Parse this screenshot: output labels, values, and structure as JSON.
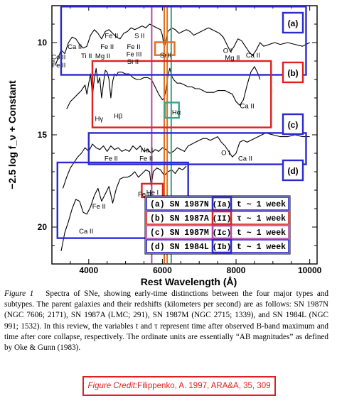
{
  "chart_data": {
    "type": "line",
    "xlabel": "Rest Wavelength (Å)",
    "ylabel": "−2.5 log f_ν + Constant",
    "xlim": [
      3000,
      10200
    ],
    "ylim": [
      22,
      8
    ],
    "x_ticks": [
      4000,
      6000,
      8000,
      10000
    ],
    "y_ticks": [
      10,
      15,
      20
    ],
    "series": [
      {
        "id": "a",
        "x": [
          3100,
          3250,
          3350,
          3450,
          3550,
          3650,
          3750,
          3850,
          3950,
          4050,
          4150,
          4250,
          4350,
          4450,
          4550,
          4650,
          4750,
          4850,
          4950,
          5050,
          5150,
          5250,
          5350,
          5450,
          5550,
          5650,
          5750,
          5850,
          5950,
          6000,
          6050,
          6100,
          6150,
          6250,
          6350,
          6450,
          6550,
          6650,
          6750,
          6850,
          6950,
          7050,
          7150,
          7250,
          7350,
          7450,
          7550,
          7650,
          7750,
          7850,
          7950,
          8050,
          8150,
          8250,
          8350,
          8450,
          8550,
          8650,
          8750,
          8900,
          9050,
          9200,
          9400,
          9600,
          9800,
          10000
        ],
        "y": [
          11.2,
          10.4,
          10.6,
          10.0,
          9.7,
          9.8,
          10.1,
          10.3,
          10.2,
          9.6,
          9.3,
          9.5,
          9.8,
          9.4,
          9.3,
          9.5,
          9.7,
          9.8,
          9.5,
          9.4,
          9.2,
          9.3,
          9.2,
          9.1,
          9.2,
          9.0,
          9.1,
          9.2,
          9.3,
          9.6,
          10.3,
          9.8,
          9.4,
          9.2,
          9.3,
          9.5,
          9.4,
          9.3,
          9.4,
          9.6,
          9.5,
          9.4,
          9.3,
          9.2,
          9.3,
          9.4,
          9.5,
          9.7,
          10.1,
          10.5,
          10.2,
          9.8,
          9.9,
          10.2,
          10.5,
          10.7,
          10.4,
          10.0,
          10.2,
          10.1,
          10.0,
          10.1,
          10.0,
          10.1,
          10.2,
          10.0
        ]
      },
      {
        "id": "b",
        "x": [
          3400,
          3500,
          3600,
          3700,
          3800,
          3900,
          3950,
          4000,
          4050,
          4100,
          4150,
          4200,
          4250,
          4300,
          4350,
          4400,
          4450,
          4500,
          4550,
          4600,
          4650,
          4700,
          4750,
          4800,
          4900,
          5000,
          5100,
          5200,
          5300,
          5400,
          5500,
          5600,
          5700,
          5800,
          5900,
          6000,
          6050,
          6100,
          6150,
          6200,
          6250,
          6300,
          6400,
          6500,
          6600,
          6700,
          6800,
          6900,
          7000,
          7100,
          7200,
          7300,
          7400,
          7500,
          7600,
          7700,
          7800,
          7900,
          8000,
          8100,
          8200,
          8300,
          8400,
          8500,
          8600,
          8650
        ],
        "y": [
          13.6,
          13.2,
          13.0,
          12.8,
          12.6,
          12.3,
          12.8,
          12.2,
          11.7,
          12.9,
          12.0,
          11.4,
          12.2,
          11.9,
          13.0,
          12.2,
          11.5,
          11.6,
          12.0,
          13.0,
          12.1,
          11.7,
          11.8,
          11.6,
          11.6,
          11.7,
          11.7,
          11.9,
          12.0,
          12.0,
          11.9,
          11.9,
          12.0,
          12.4,
          12.8,
          13.1,
          13.0,
          12.5,
          11.8,
          11.4,
          11.8,
          12.0,
          12.2,
          12.2,
          12.3,
          12.4,
          12.4,
          12.5,
          12.5,
          12.6,
          12.7,
          12.7,
          12.7,
          12.6,
          12.6,
          12.6,
          12.7,
          12.8,
          13.2,
          13.4,
          13.1,
          12.3,
          11.6,
          11.3,
          11.7,
          12.0
        ]
      },
      {
        "id": "c",
        "x": [
          3300,
          3400,
          3500,
          3600,
          3700,
          3800,
          3900,
          4000,
          4100,
          4200,
          4300,
          4400,
          4500,
          4600,
          4700,
          4800,
          4900,
          5000,
          5100,
          5200,
          5300,
          5400,
          5500,
          5600,
          5700,
          5800,
          5900,
          6000,
          6100,
          6200,
          6300,
          6400,
          6500,
          6600,
          6700,
          6800,
          6900,
          7000,
          7100,
          7200,
          7300,
          7400,
          7500,
          7600,
          7700,
          7800,
          7900,
          8000,
          8100,
          8200,
          8300,
          8400,
          8600,
          8800,
          9000,
          9200,
          9400,
          9600,
          9800,
          10000
        ],
        "y": [
          17.9,
          17.3,
          16.8,
          16.5,
          16.2,
          16.0,
          15.7,
          15.9,
          15.5,
          15.7,
          15.8,
          15.6,
          15.9,
          15.6,
          15.8,
          15.7,
          15.9,
          15.8,
          15.9,
          15.6,
          15.8,
          15.6,
          15.9,
          15.8,
          16.0,
          15.8,
          15.9,
          15.7,
          15.8,
          16.0,
          15.9,
          15.7,
          15.8,
          15.9,
          15.6,
          15.5,
          15.4,
          15.3,
          15.2,
          15.2,
          15.3,
          15.2,
          15.1,
          15.4,
          15.6,
          15.9,
          16.2,
          16.0,
          15.4,
          15.3,
          15.4,
          15.3,
          15.1,
          14.9,
          15.0,
          15.1,
          15.1,
          15.0,
          15.1,
          15.1
        ]
      },
      {
        "id": "d",
        "x": [
          3250,
          3350,
          3450,
          3550,
          3650,
          3750,
          3850,
          3950,
          4050,
          4150,
          4250,
          4350,
          4450,
          4550,
          4650,
          4750,
          4850,
          4950,
          5050,
          5150,
          5250,
          5350,
          5450,
          5550,
          5650,
          5700,
          5750,
          5850,
          5950,
          6050,
          6150,
          6250,
          6350,
          6450,
          6550,
          6650
        ],
        "y": [
          21.3,
          20.3,
          19.7,
          19.0,
          18.5,
          18.6,
          19.2,
          19.3,
          18.9,
          18.3,
          17.9,
          18.6,
          18.2,
          17.8,
          18.7,
          17.9,
          17.4,
          17.3,
          17.3,
          17.2,
          17.0,
          17.3,
          17.1,
          16.9,
          17.0,
          17.8,
          17.0,
          16.8,
          16.9,
          17.2,
          17.0,
          16.9,
          17.1,
          16.8,
          16.9,
          16.7
        ]
      }
    ],
    "line_labels": [
      {
        "text": "Co II",
        "x": 3180,
        "y": 10.9
      },
      {
        "text": "Fe II",
        "x": 3190,
        "y": 11.35
      },
      {
        "text": "Ca II",
        "x": 3620,
        "y": 10.35
      },
      {
        "text": "Ti II",
        "x": 3940,
        "y": 10.85
      },
      {
        "text": "Fe II",
        "x": 4620,
        "y": 9.75
      },
      {
        "text": "S II",
        "x": 5380,
        "y": 9.75
      },
      {
        "text": "Fe II",
        "x": 4500,
        "y": 10.35
      },
      {
        "text": "Fe II",
        "x": 5220,
        "y": 10.35
      },
      {
        "text": "Fe III",
        "x": 5230,
        "y": 10.75
      },
      {
        "text": "Mg II",
        "x": 4380,
        "y": 10.85
      },
      {
        "text": "Si II",
        "x": 5200,
        "y": 11.15
      },
      {
        "text": "Si II",
        "x": 6090,
        "y": 10.8
      },
      {
        "text": "O I",
        "x": 7770,
        "y": 10.55
      },
      {
        "text": "Mg II",
        "x": 7900,
        "y": 10.95
      },
      {
        "text": "Ca II",
        "x": 8460,
        "y": 10.8
      },
      {
        "text": "Hγ",
        "x": 4280,
        "y": 14.25
      },
      {
        "text": "Hβ",
        "x": 4800,
        "y": 14.1
      },
      {
        "text": "Hα",
        "x": 6380,
        "y": 13.9
      },
      {
        "text": "Ca II",
        "x": 8300,
        "y": 13.55
      },
      {
        "text": "Na I",
        "x": 5580,
        "y": 15.95
      },
      {
        "text": "Fe II",
        "x": 4610,
        "y": 16.4
      },
      {
        "text": "Fe II",
        "x": 5560,
        "y": 16.4
      },
      {
        "text": "O I",
        "x": 7720,
        "y": 16.1
      },
      {
        "text": "Ca II",
        "x": 8250,
        "y": 16.4
      },
      {
        "text": "Fe II",
        "x": 5520,
        "y": 18.35
      },
      {
        "text": "Fe II",
        "x": 4280,
        "y": 19.0
      },
      {
        "text": "Ca II",
        "x": 3930,
        "y": 20.35
      },
      {
        "text": "He I",
        "x": 5730,
        "y": 18.25
      }
    ],
    "reference_lines": [
      {
        "x": 5710,
        "color": "#b04aa0"
      },
      {
        "x": 6050,
        "color": "#e07020"
      },
      {
        "x": 6130,
        "color": "#e07020"
      },
      {
        "x": 6240,
        "color": "#30a890"
      }
    ],
    "legend": {
      "rows": [
        {
          "label": "(a)  SN 1987N",
          "type": "(Ia)",
          "time": "t ∼ 1 week",
          "color": "#2a2ad0"
        },
        {
          "label": "(b)  SN 1987A",
          "type": "(II)",
          "time": "τ ∼ 1 week",
          "color": "#e02020"
        },
        {
          "label": "(c)  SN 1987M",
          "type": "(Ic)",
          "time": "t ∼ 1 week",
          "color": "#b04aa0"
        },
        {
          "label": "(d)  SN 1984L",
          "type": "(Ib)",
          "time": "t ∼ 1 week",
          "color": "#2a2ad0"
        }
      ]
    },
    "panel_tags": [
      {
        "text": "(a)",
        "color": "#2a2ad0"
      },
      {
        "text": "(b)",
        "color": "#e02020"
      },
      {
        "text": "(c)",
        "color": "#2a2ad0"
      },
      {
        "text": "(d)",
        "color": "#2a2ad0"
      }
    ]
  },
  "caption": {
    "label": "Figure 1",
    "text": "Spectra of SNe, showing early-time distinctions between the four major types and subtypes. The parent galaxies and their redshifts (kilometers per second) are as follows: SN 1987N (NGC 7606; 2171), SN 1987A (LMC; 291), SN 1987M (NGC 2715; 1339), and SN 1984L (NGC 991; 1532). In this review, the variables t and τ represent time after observed B-band maximum and time after core collapse, respectively. The ordinate units are essentially “AB magnitudes” as defined by Oke & Gunn (1983)."
  },
  "credit": {
    "label": "Figure Credit:",
    "text": " Filippenko, A. 1997, ARA&A, 35, 309"
  },
  "colors": {
    "blue": "#2a2ad0",
    "red": "#e02020",
    "purple": "#b04aa0",
    "orange": "#e07020",
    "teal": "#30a890"
  }
}
